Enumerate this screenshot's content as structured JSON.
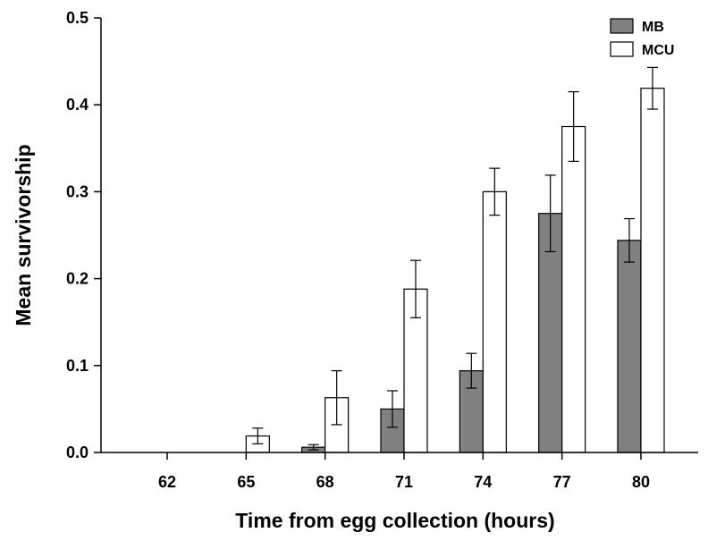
{
  "chart_data": {
    "type": "bar",
    "title": "",
    "xlabel": "Time from egg collection (hours)",
    "ylabel": "Mean survivorship",
    "categories": [
      "62",
      "65",
      "68",
      "71",
      "74",
      "77",
      "80"
    ],
    "ylim": [
      0,
      0.5
    ],
    "yticks": [
      "0.0",
      "0.1",
      "0.2",
      "0.3",
      "0.4",
      "0.5"
    ],
    "grid": false,
    "legend_position": "top-right",
    "series": [
      {
        "name": "MB",
        "color": "#808080",
        "values": [
          0,
          0,
          0.006,
          0.05,
          0.094,
          0.275,
          0.244
        ],
        "error": [
          0,
          0,
          0.003,
          0.021,
          0.02,
          0.044,
          0.025
        ]
      },
      {
        "name": "MCU",
        "color": "#ffffff",
        "values": [
          0,
          0.019,
          0.063,
          0.188,
          0.3,
          0.375,
          0.419
        ],
        "error": [
          0,
          0.009,
          0.031,
          0.033,
          0.027,
          0.04,
          0.024
        ]
      }
    ]
  }
}
